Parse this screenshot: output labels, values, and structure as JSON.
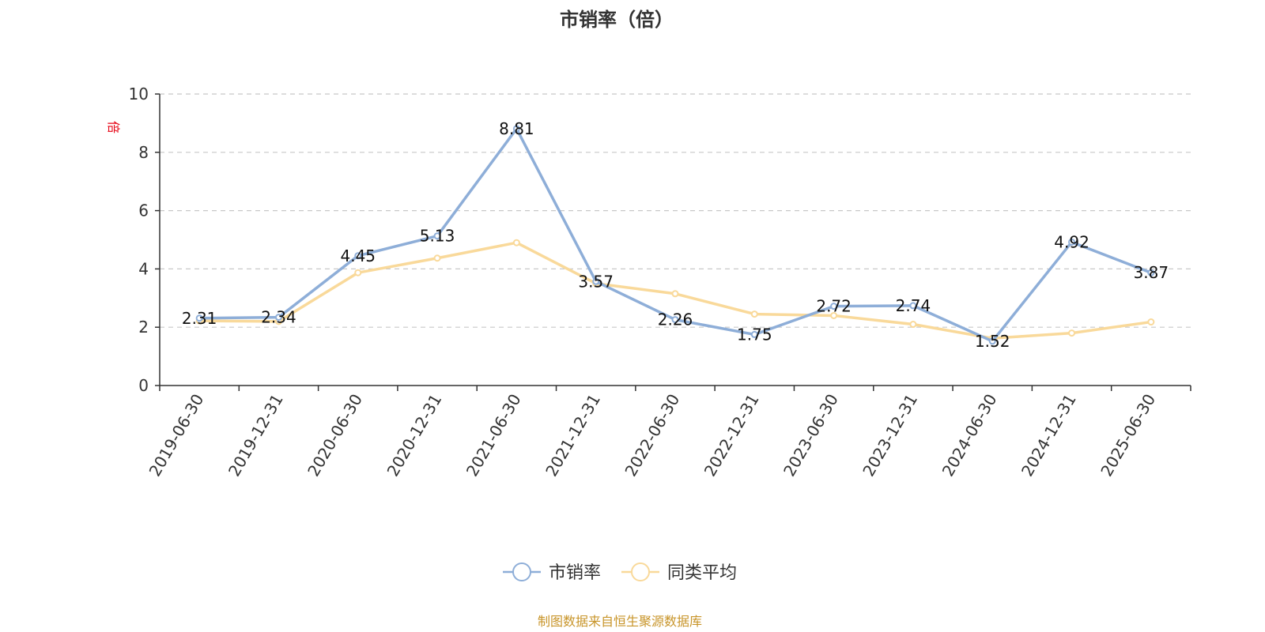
{
  "chart_data": {
    "type": "line",
    "title": "市销率（倍）",
    "unit_label": "倍",
    "categories": [
      "2019-06-30",
      "2019-12-31",
      "2020-06-30",
      "2020-12-31",
      "2021-06-30",
      "2021-12-31",
      "2022-06-30",
      "2022-12-31",
      "2023-06-30",
      "2023-12-31",
      "2024-06-30",
      "2024-12-31",
      "2025-06-30"
    ],
    "ylim": [
      0,
      10
    ],
    "yticks": [
      0,
      2,
      4,
      6,
      8,
      10
    ],
    "grid": true,
    "legend_position": "bottom-center",
    "series": [
      {
        "name": "市销率",
        "color": "#8eaed8",
        "values": [
          2.31,
          2.34,
          4.45,
          5.13,
          8.81,
          3.57,
          2.26,
          1.75,
          2.72,
          2.74,
          1.52,
          4.92,
          3.87
        ],
        "data_labels": [
          "2.31",
          "2.34",
          "4.45",
          "5.13",
          "8.81",
          "3.57",
          "2.26",
          "1.75",
          "2.72",
          "2.74",
          "1.52",
          "4.92",
          "3.87"
        ]
      },
      {
        "name": "同类平均",
        "color": "#f9d99a",
        "values": [
          2.22,
          2.2,
          3.87,
          4.37,
          4.9,
          3.5,
          3.15,
          2.45,
          2.4,
          2.1,
          1.62,
          1.8,
          2.18
        ]
      }
    ]
  },
  "source_note": "制图数据来自恒生聚源数据库"
}
